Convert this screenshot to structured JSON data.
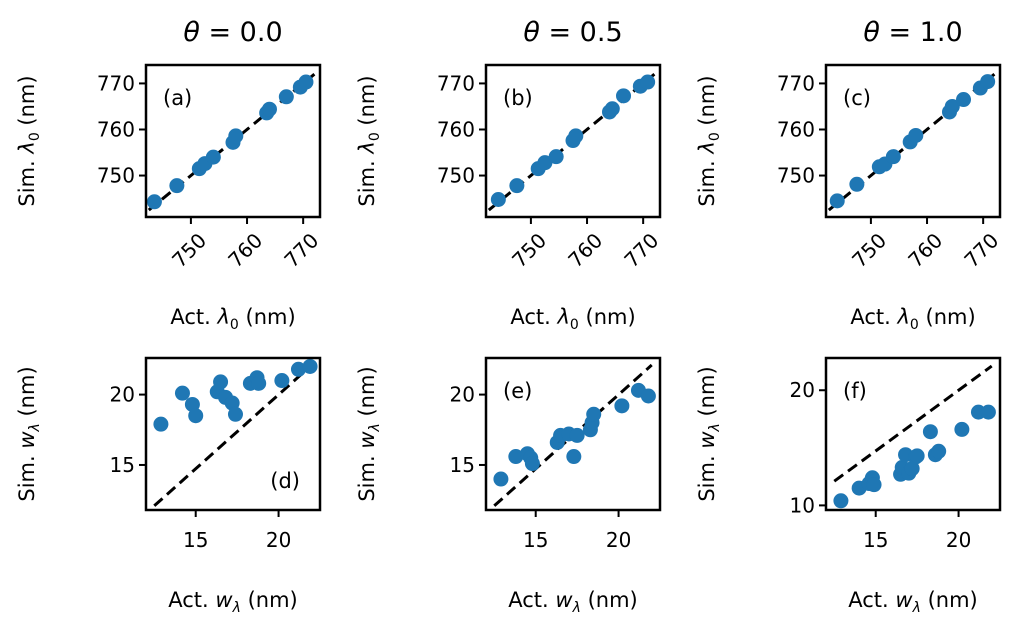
{
  "chart_data": [
    {
      "type": "scatter",
      "panel": "(a)",
      "title": "θ = 0.0",
      "xlabel": "Act. λ0 (nm)",
      "ylabel": "Sim. λ0 (nm)",
      "xlim": [
        742,
        773
      ],
      "ylim": [
        741,
        774
      ],
      "xticks": [
        750,
        760,
        770
      ],
      "yticks": [
        750,
        760,
        770
      ],
      "label_position": "top-left",
      "reference_line": {
        "style": "dashed",
        "x": [
          742.5,
          772
        ],
        "y": [
          742.5,
          772
        ]
      },
      "x": [
        743.5,
        747.5,
        751.5,
        752.5,
        754,
        757.5,
        758,
        763.5,
        764,
        767,
        769.5,
        770.5
      ],
      "y": [
        744.3,
        747.8,
        751.5,
        752.6,
        754,
        757.2,
        758.6,
        763.6,
        764.4,
        767.1,
        769.2,
        770.3
      ]
    },
    {
      "type": "scatter",
      "panel": "(b)",
      "title": "θ = 0.5",
      "xlabel": "Act. λ0 (nm)",
      "ylabel": "Sim. λ0 (nm)",
      "xlim": [
        742,
        773
      ],
      "ylim": [
        741,
        774
      ],
      "xticks": [
        750,
        760,
        770
      ],
      "yticks": [
        750,
        760,
        770
      ],
      "label_position": "top-left",
      "reference_line": {
        "style": "dashed",
        "x": [
          742.5,
          772
        ],
        "y": [
          742.5,
          772
        ]
      },
      "x": [
        744.2,
        747.5,
        751.3,
        752.5,
        754.5,
        757.5,
        758,
        764,
        764.5,
        766.5,
        769.5,
        770.8
      ],
      "y": [
        744.8,
        747.8,
        751.5,
        752.8,
        754.1,
        757.6,
        758.6,
        763.8,
        764.5,
        767.3,
        769.4,
        770.3
      ]
    },
    {
      "type": "scatter",
      "panel": "(c)",
      "title": "θ = 1.0",
      "xlabel": "Act. λ0 (nm)",
      "ylabel": "Sim. λ0 (nm)",
      "xlim": [
        742,
        773
      ],
      "ylim": [
        741,
        774
      ],
      "xticks": [
        750,
        760,
        770
      ],
      "yticks": [
        750,
        760,
        770
      ],
      "label_position": "top-left",
      "reference_line": {
        "style": "dashed",
        "x": [
          742.5,
          772
        ],
        "y": [
          742.5,
          772
        ]
      },
      "x": [
        744,
        747.5,
        751.5,
        752.5,
        754,
        757,
        758,
        764,
        764.5,
        766.5,
        769.5,
        770.8
      ],
      "y": [
        744.5,
        748.1,
        751.9,
        752.5,
        754.1,
        757.3,
        758.7,
        763.8,
        765,
        766.5,
        769,
        770.4
      ]
    },
    {
      "type": "scatter",
      "panel": "(d)",
      "title": "",
      "xlabel": "Act. wλ (nm)",
      "ylabel": "Sim. wλ (nm)",
      "xlim": [
        12,
        22.5
      ],
      "ylim": [
        11.8,
        22.6
      ],
      "xticks": [
        15,
        20
      ],
      "yticks": [
        15,
        20
      ],
      "label_position": "bottom-right",
      "reference_line": {
        "style": "dashed",
        "x": [
          12.5,
          22
        ],
        "y": [
          12.1,
          22.1
        ]
      },
      "x": [
        12.9,
        14.2,
        14.8,
        15,
        16.3,
        16.5,
        16.8,
        17.2,
        17.4,
        18.3,
        18.7,
        18.8,
        20.2,
        21.2,
        21.9
      ],
      "y": [
        17.9,
        20.1,
        19.3,
        18.5,
        20.2,
        20.9,
        19.8,
        19.4,
        18.6,
        20.8,
        21.2,
        20.8,
        21,
        21.8,
        22
      ]
    },
    {
      "type": "scatter",
      "panel": "(e)",
      "title": "",
      "xlabel": "Act. wλ (nm)",
      "ylabel": "Sim. wλ (nm)",
      "xlim": [
        12,
        22.5
      ],
      "ylim": [
        11.8,
        22.6
      ],
      "xticks": [
        15,
        20
      ],
      "yticks": [
        15,
        20
      ],
      "label_position": "top-left",
      "reference_line": {
        "style": "dashed",
        "x": [
          12.5,
          22
        ],
        "y": [
          12.1,
          22.1
        ]
      },
      "x": [
        12.9,
        13.8,
        14.5,
        14.7,
        14.8,
        16.3,
        16.5,
        17,
        17.3,
        17.5,
        18.3,
        18.4,
        18.5,
        20.2,
        21.2,
        21.8
      ],
      "y": [
        14,
        15.6,
        15.8,
        15.5,
        15.1,
        16.6,
        17.1,
        17.2,
        15.6,
        17.1,
        17.5,
        18,
        18.6,
        19.2,
        20.3,
        19.9
      ]
    },
    {
      "type": "scatter",
      "panel": "(f)",
      "title": "",
      "xlabel": "Act. wλ (nm)",
      "ylabel": "Sim. wλ (nm)",
      "xlim": [
        12,
        22.5
      ],
      "ylim": [
        9.6,
        22.8
      ],
      "xticks": [
        15,
        20
      ],
      "yticks": [
        10,
        20
      ],
      "label_position": "top-left",
      "reference_line": {
        "style": "dashed",
        "x": [
          12.5,
          22
        ],
        "y": [
          12.1,
          22.1
        ]
      },
      "x": [
        12.9,
        14,
        14.6,
        14.8,
        14.9,
        16.5,
        16.6,
        16.8,
        17,
        17.2,
        17.4,
        17.5,
        18.3,
        18.6,
        18.8,
        20.2,
        21.2,
        21.8
      ],
      "y": [
        10.4,
        11.5,
        11.9,
        12.4,
        11.8,
        12.7,
        13.3,
        14.4,
        12.8,
        13.2,
        14.2,
        14.3,
        16.4,
        14.4,
        14.7,
        16.6,
        18.1,
        18.1
      ]
    }
  ],
  "colors": {
    "points": "#1f77b4",
    "reference_line": "#000000",
    "axes": "#000000"
  }
}
